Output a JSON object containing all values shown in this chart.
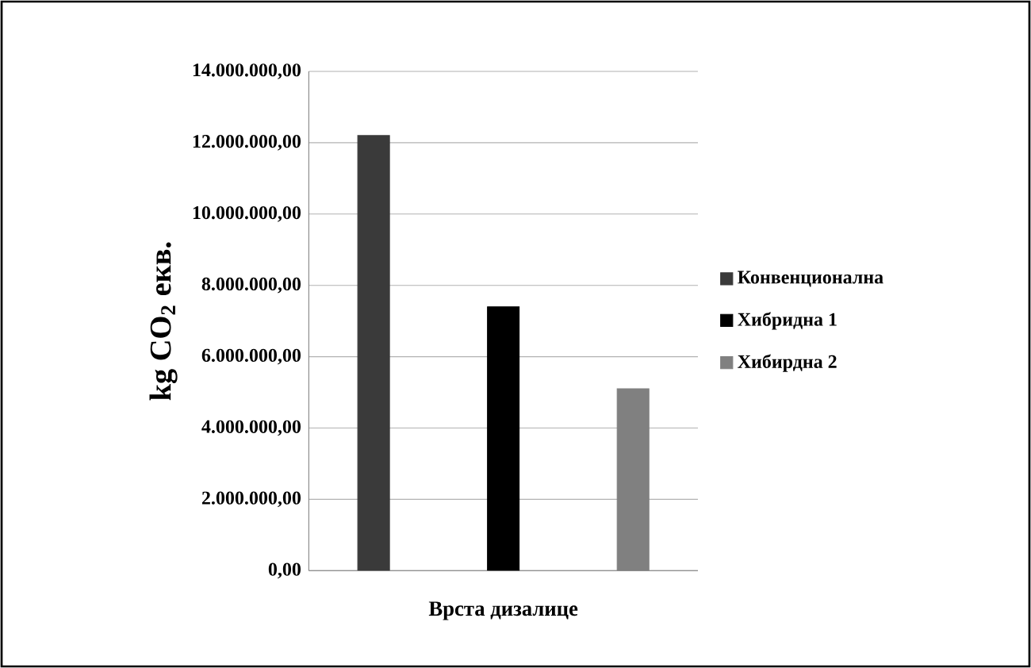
{
  "chart_data": {
    "type": "bar",
    "ylabel": "kg CO$_{2}$ екв.",
    "xlabel": "Врста дизалице",
    "categories": [
      null,
      null,
      null
    ],
    "series": [
      {
        "name": "Конвенционална",
        "color": "#3a3a3a",
        "values": [
          12200000,
          null,
          null
        ]
      },
      {
        "name": "Хибридна 1",
        "color": "#000000",
        "values": [
          null,
          7400000,
          null
        ]
      },
      {
        "name": "Хибирдна 2",
        "color": "#808080",
        "values": [
          null,
          null,
          5100000
        ]
      }
    ],
    "ylim": [
      0,
      14000000
    ],
    "yticks": [
      {
        "value": 0,
        "label": "0,00"
      },
      {
        "value": 2000000,
        "label": "2.000.000,00"
      },
      {
        "value": 4000000,
        "label": "4.000.000,00"
      },
      {
        "value": 6000000,
        "label": "6.000.000,00"
      },
      {
        "value": 8000000,
        "label": "8.000.000,00"
      },
      {
        "value": 10000000,
        "label": "10.000.000,00"
      },
      {
        "value": 12000000,
        "label": "12.000.000,00"
      },
      {
        "value": 14000000,
        "label": "14.000.000,00"
      }
    ],
    "grid": "y",
    "legend": "right"
  }
}
